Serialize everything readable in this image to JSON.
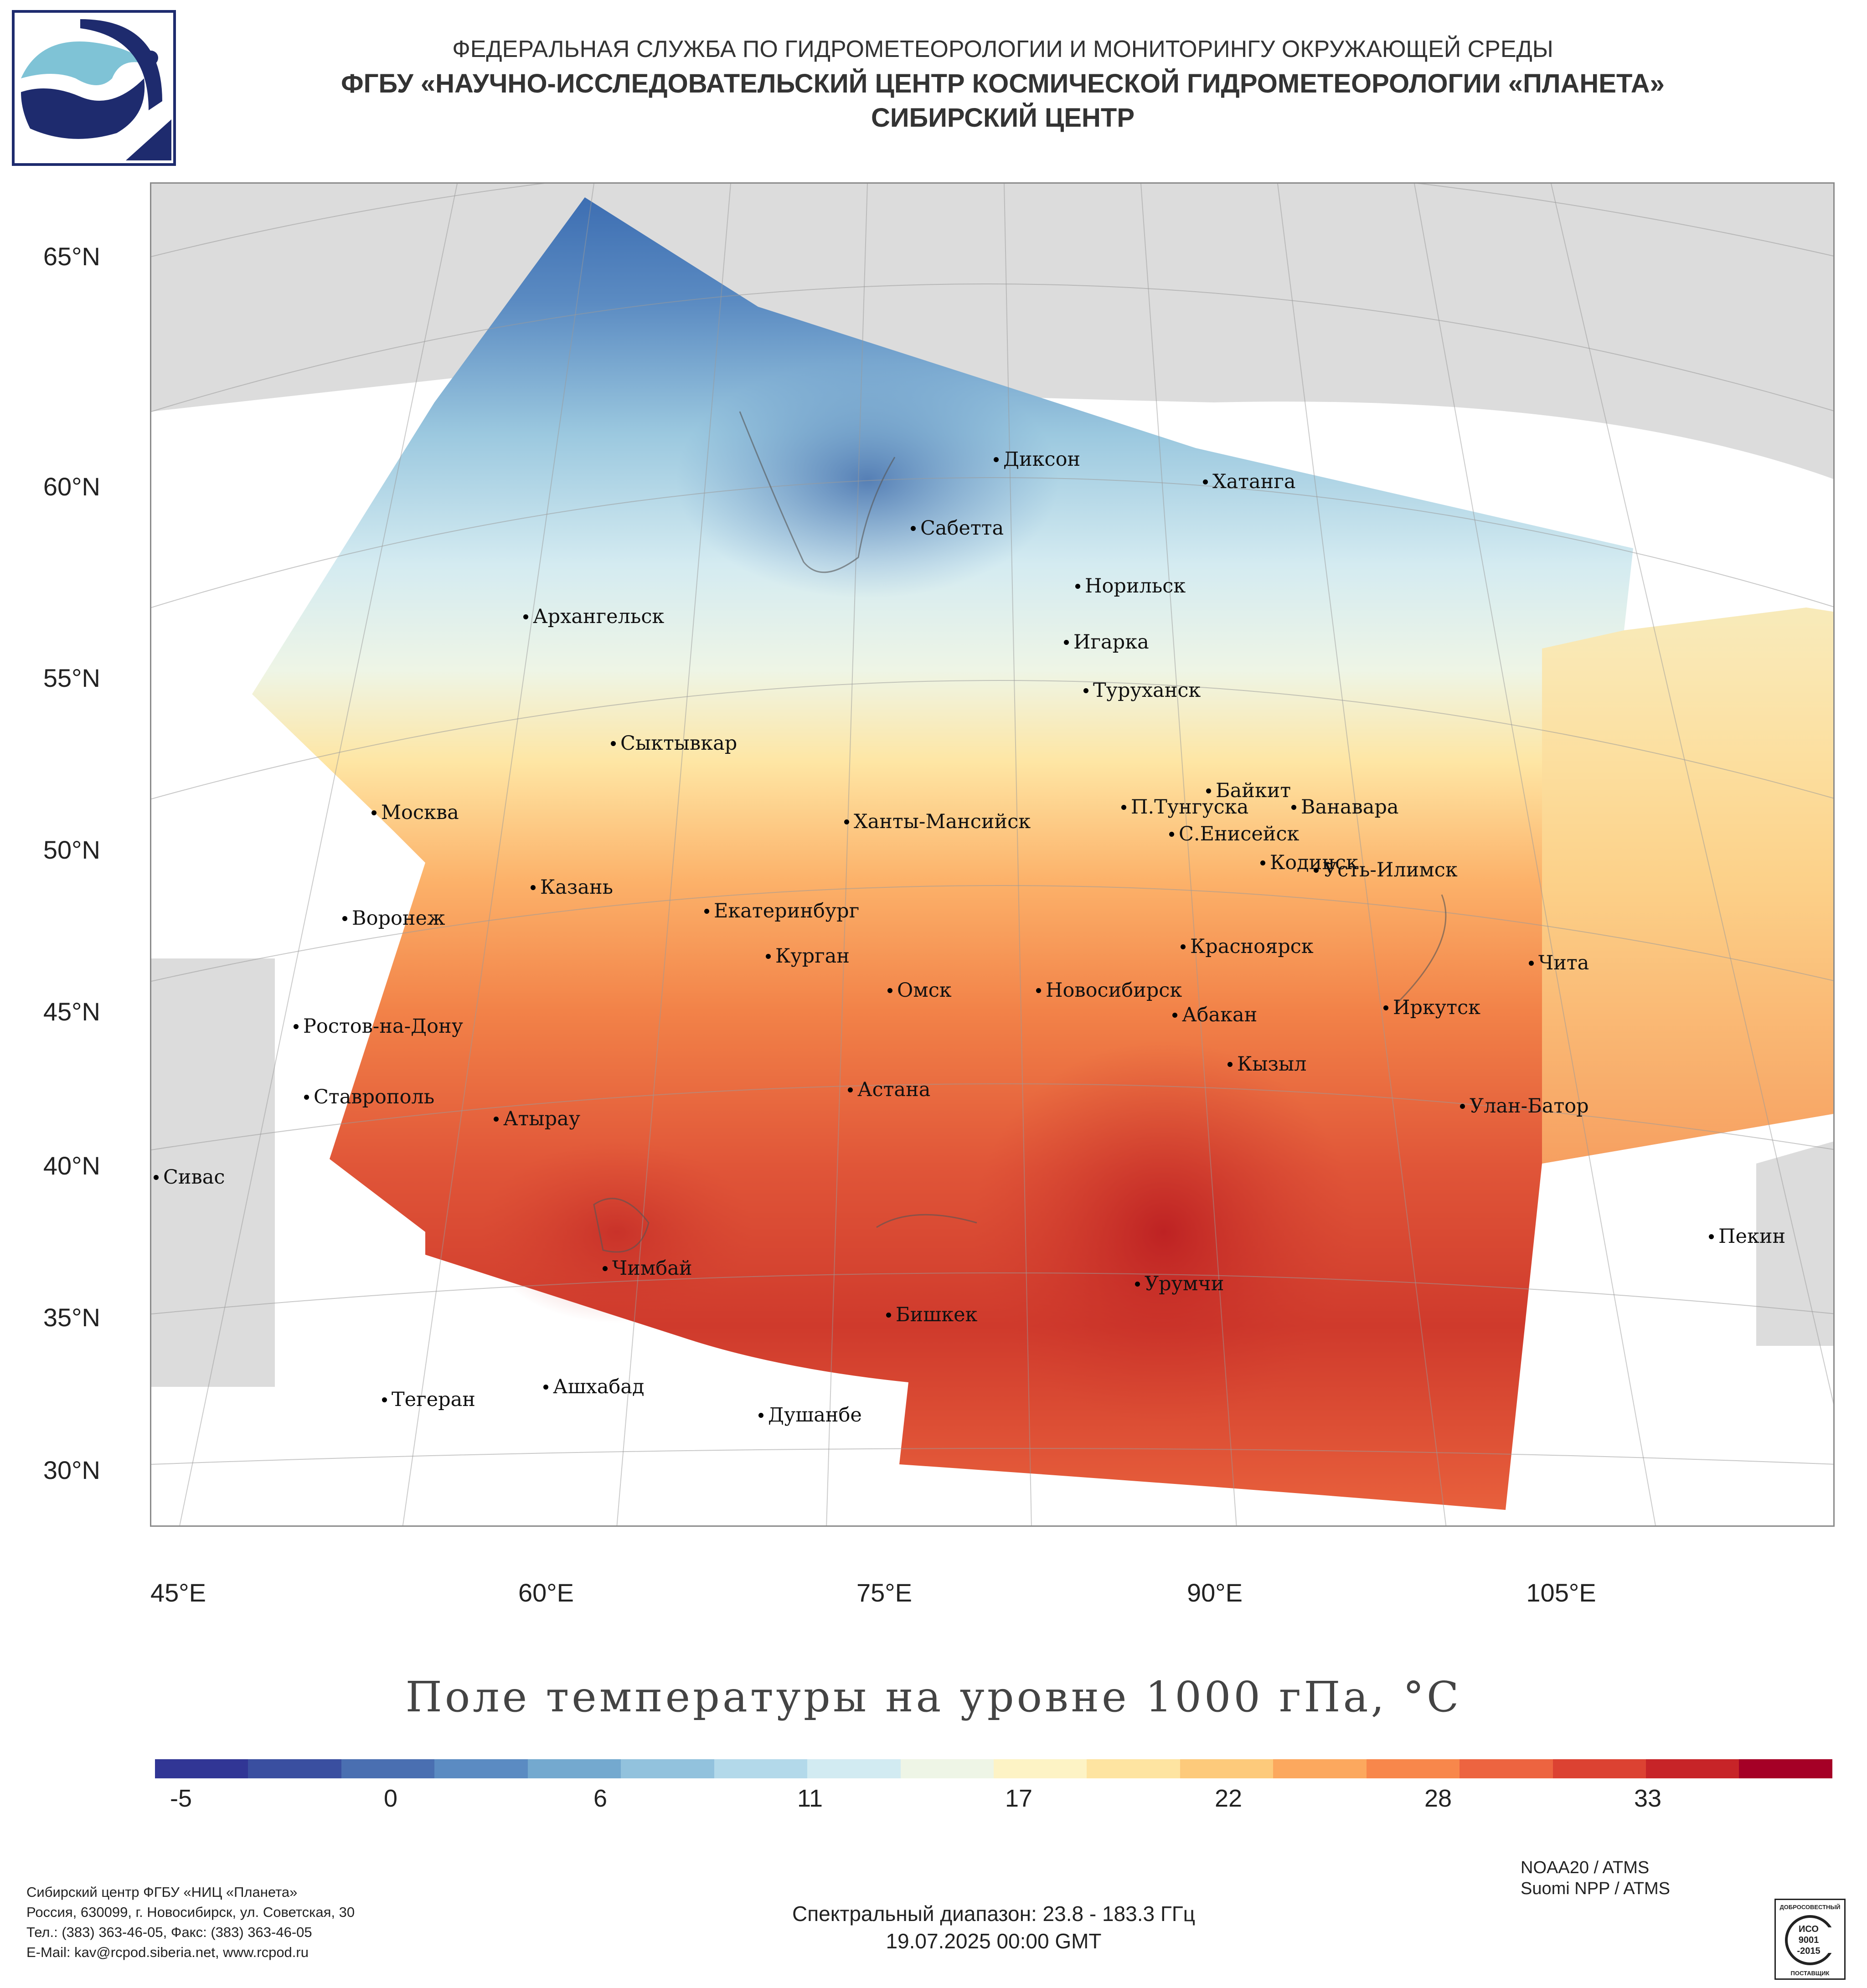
{
  "header": {
    "line1": "ФЕДЕРАЛЬНАЯ СЛУЖБА ПО ГИДРОМЕТЕОРОЛОГИИ И МОНИТОРИНГУ ОКРУЖАЮЩЕЙ СРЕДЫ",
    "line2": "ФГБУ «НАУЧНО-ИССЛЕДОВАТЕЛЬСКИЙ ЦЕНТР КОСМИЧЕСКОЙ ГИДРОМЕТЕОРОЛОГИИ «ПЛАНЕТА»",
    "line3": "СИБИРСКИЙ ЦЕНТР"
  },
  "logo_icon": "planeta-logo-icon",
  "map": {
    "lat_labels": [
      "65°N",
      "60°N",
      "55°N",
      "50°N",
      "45°N",
      "40°N",
      "35°N",
      "30°N"
    ],
    "lon_labels": [
      "45°E",
      "60°E",
      "75°E",
      "90°E",
      "105°E"
    ],
    "cities": [
      {
        "name": "Диксон"
      },
      {
        "name": "Хатанга"
      },
      {
        "name": "Сабетта"
      },
      {
        "name": "Норильск"
      },
      {
        "name": "Архангельск"
      },
      {
        "name": "Игарка"
      },
      {
        "name": "Туруханск"
      },
      {
        "name": "Сыктывкар"
      },
      {
        "name": "Байкит"
      },
      {
        "name": "П.Тунгуска"
      },
      {
        "name": "Ванавара"
      },
      {
        "name": "Москва"
      },
      {
        "name": "Ханты-Мансийск"
      },
      {
        "name": "С.Енисейск"
      },
      {
        "name": "Кодинск"
      },
      {
        "name": "Усть-Илимск"
      },
      {
        "name": "Казань"
      },
      {
        "name": "Екатеринбург"
      },
      {
        "name": "Воронеж"
      },
      {
        "name": "Красноярск"
      },
      {
        "name": "Курган"
      },
      {
        "name": "Чита"
      },
      {
        "name": "Омск"
      },
      {
        "name": "Новосибирск"
      },
      {
        "name": "Иркутск"
      },
      {
        "name": "Абакан"
      },
      {
        "name": "Ростов-на-Дону"
      },
      {
        "name": "Кызыл"
      },
      {
        "name": "Астана"
      },
      {
        "name": "Ставрополь"
      },
      {
        "name": "Улан-Батор"
      },
      {
        "name": "Атырау"
      },
      {
        "name": "Сивас"
      },
      {
        "name": "Пекин"
      },
      {
        "name": "Чимбай"
      },
      {
        "name": "Урумчи"
      },
      {
        "name": "Бишкек"
      },
      {
        "name": "Ашхабад"
      },
      {
        "name": "Тегеран"
      },
      {
        "name": "Душанбе"
      }
    ]
  },
  "map_title": "Поле температуры на уровне 1000 гПа, °С",
  "colorbar": {
    "colors": [
      "#313695",
      "#3a4fa0",
      "#4a6fb1",
      "#5b8bc2",
      "#74a9cf",
      "#92c2dd",
      "#b3d9ea",
      "#d2ebf2",
      "#eef5e6",
      "#fdf3c5",
      "#fee4a1",
      "#fdca7b",
      "#fca85e",
      "#f8874b",
      "#ed6440",
      "#dc4232",
      "#c72428",
      "#a50026"
    ],
    "ticks": [
      "-5",
      "0",
      "6",
      "11",
      "17",
      "22",
      "28",
      "33"
    ]
  },
  "footer": {
    "org": "Сибирский центр ФГБУ «НИЦ «Планета»",
    "address": "Россия, 630099, г. Новосибирск, ул. Советская, 30",
    "phone": "Тел.: (383) 363-46-05, Факс: (383) 363-46-05",
    "email": "E-Mail: kav@rcpod.siberia.net, www.rcpod.ru",
    "sat1": "NOAA20 / ATMS",
    "sat2": "Suomi NPP / ATMS",
    "spectral": "Спектральный диапазон: 23.8 - 183.3 ГГц",
    "datetime": "19.07.2025 00:00 GMT",
    "iso_icon": "iso-9001-badge-icon",
    "iso_top": "ДОБРОСОВЕСТНЫЙ",
    "iso_l1": "ИСО",
    "iso_l2": "9001",
    "iso_l3": "-2015",
    "iso_bottom": "ПОСТАВЩИК"
  }
}
